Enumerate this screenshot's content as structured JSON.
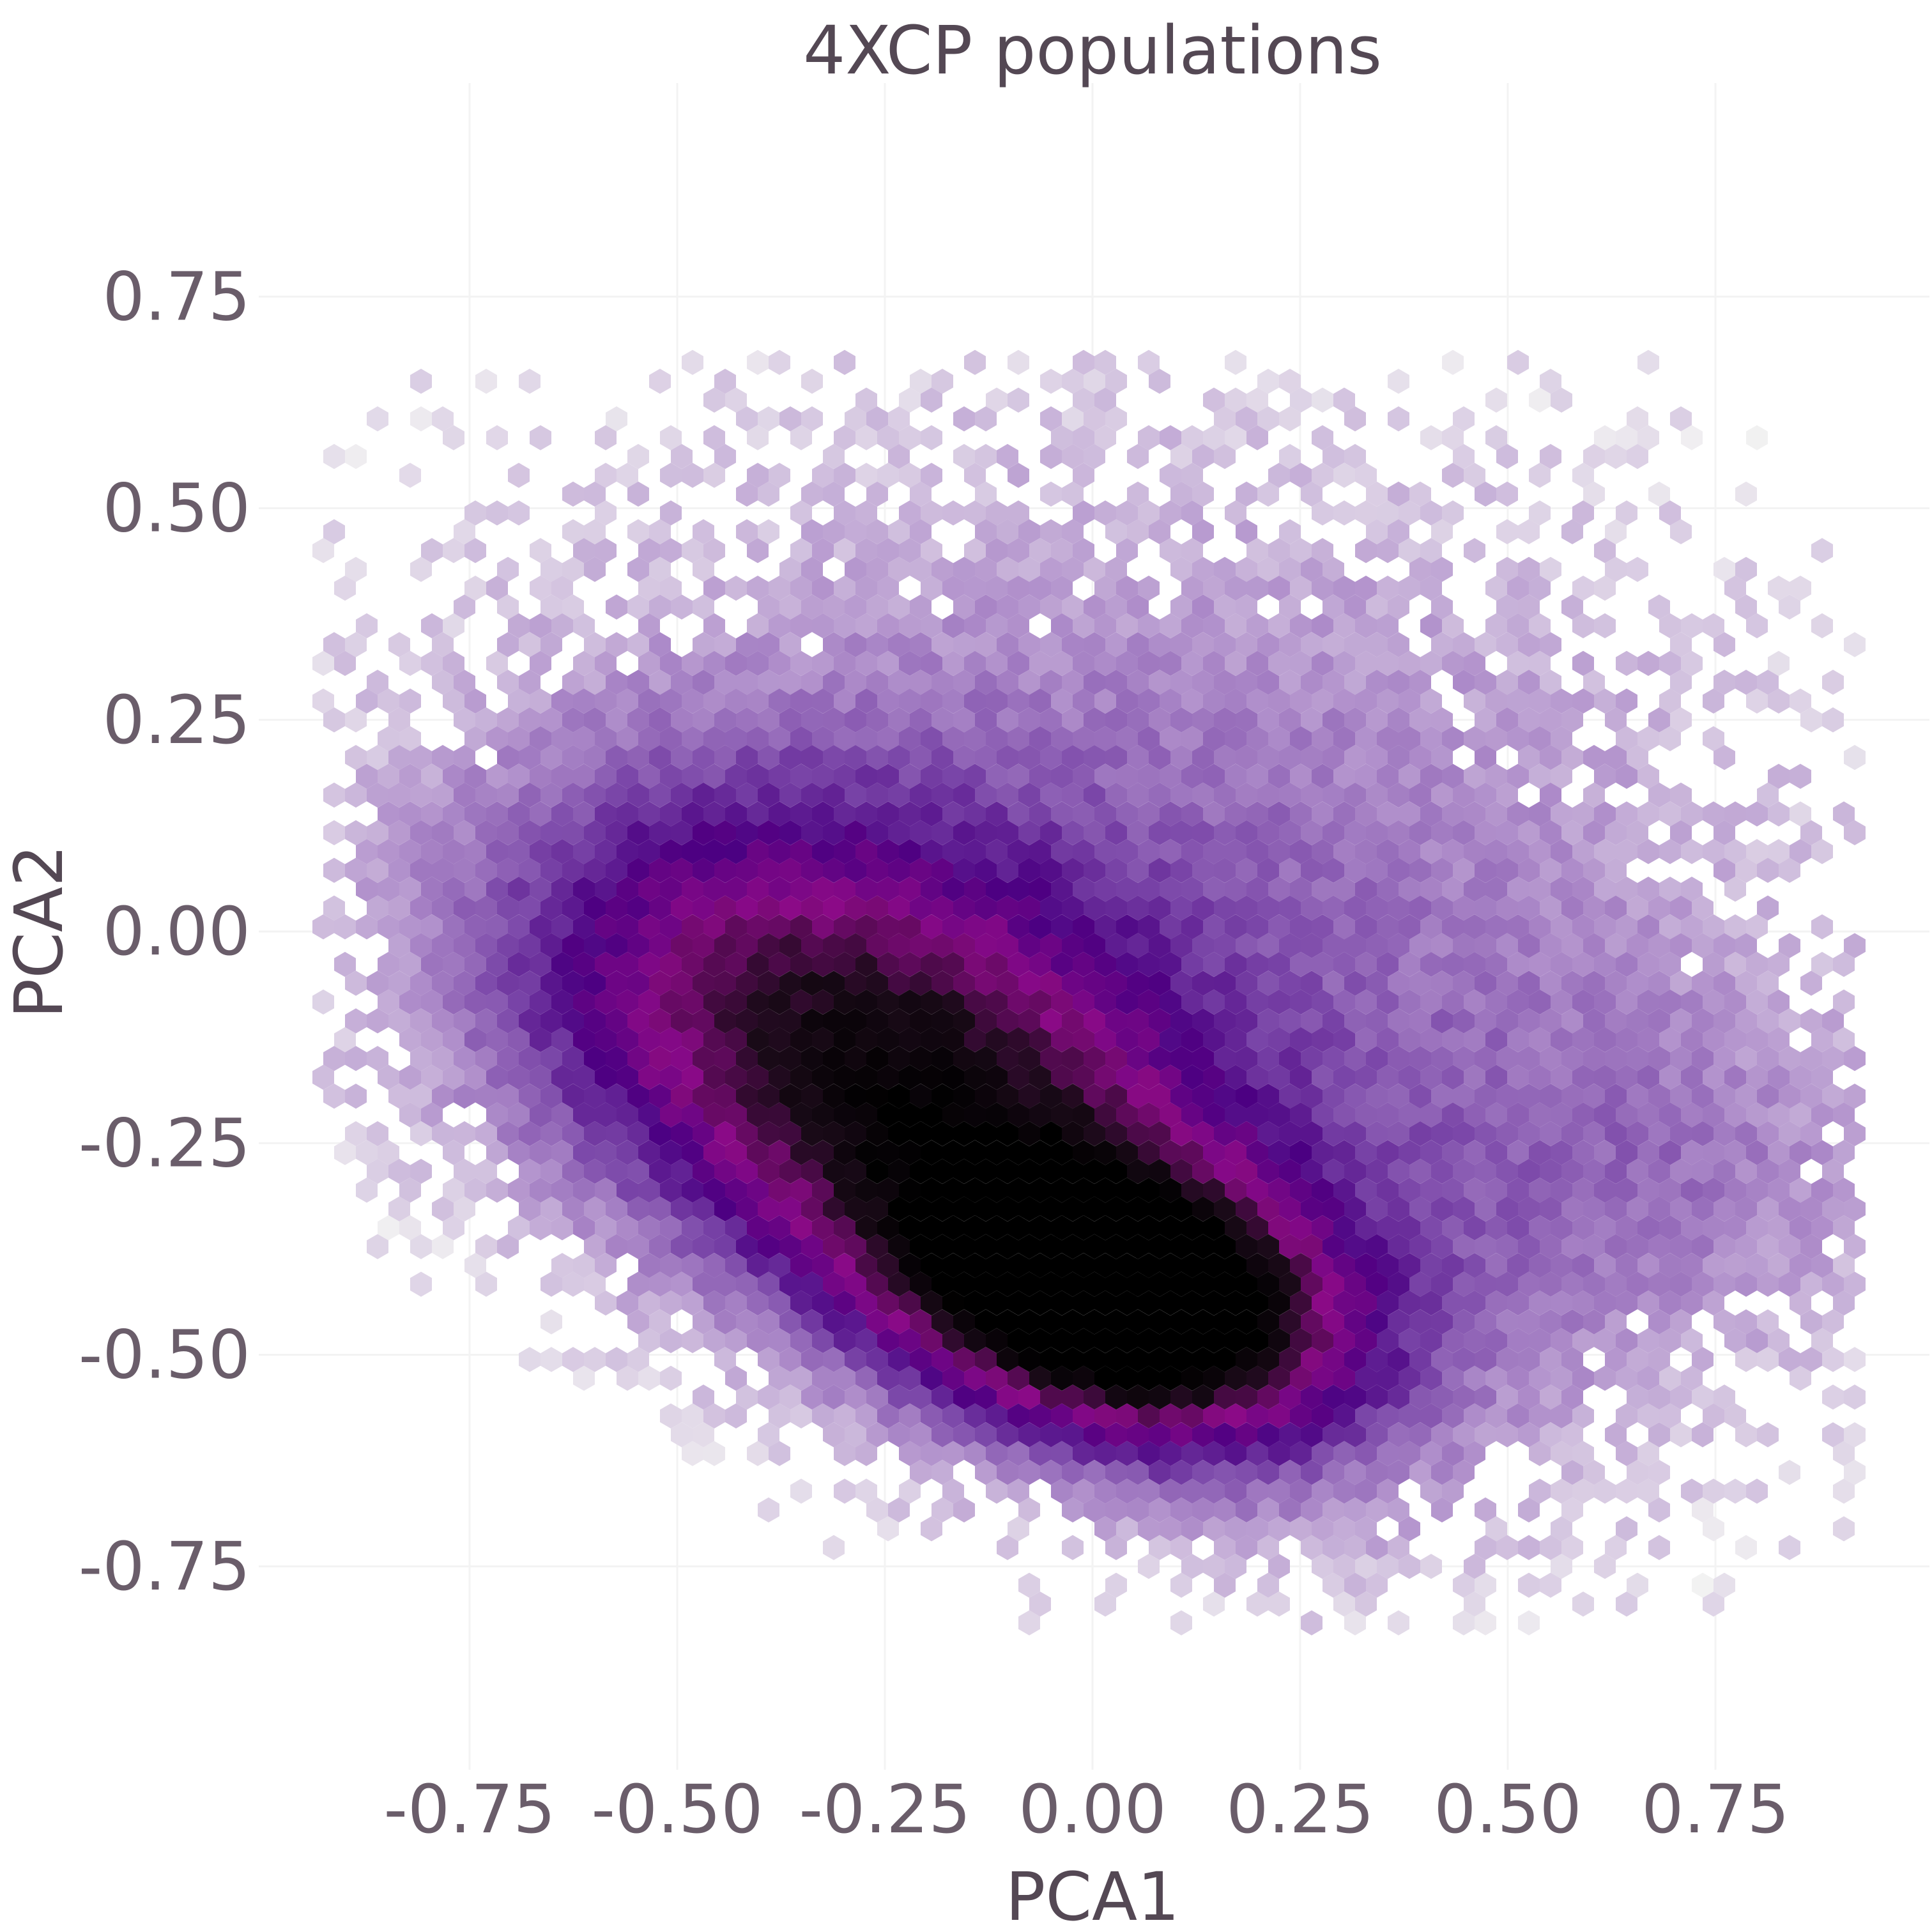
{
  "chart_data": {
    "type": "heatmap",
    "subtype": "hexbin",
    "title": "4XCP populations",
    "xlabel": "PCA1",
    "ylabel": "PCA2",
    "xlim": [
      -1.0,
      1.0
    ],
    "ylim": [
      -1.0,
      1.0
    ],
    "x_ticks": [
      -0.75,
      -0.5,
      -0.25,
      0.0,
      0.25,
      0.5,
      0.75
    ],
    "x_tick_labels": [
      "-0.75",
      "-0.50",
      "-0.25",
      "0.00",
      "0.25",
      "0.50",
      "0.75"
    ],
    "y_ticks": [
      -0.75,
      -0.5,
      -0.25,
      0.0,
      0.25,
      0.5,
      0.75
    ],
    "y_tick_labels": [
      "-0.75",
      "-0.50",
      "-0.25",
      "0.00",
      "0.25",
      "0.50",
      "0.75"
    ],
    "grid": true,
    "legend": "none",
    "colormap": [
      "#f2f2f2",
      "#d9cce3",
      "#b08fcb",
      "#7a46a8",
      "#4b0082",
      "#8b0a87",
      "#1a0a18",
      "#000000"
    ],
    "density_peaks": [
      {
        "x": -0.05,
        "y": -0.43,
        "level": 1.0
      },
      {
        "x": 0.12,
        "y": -0.45,
        "level": 0.97
      },
      {
        "x": -0.22,
        "y": -0.22,
        "level": 0.6
      },
      {
        "x": 0.7,
        "y": -0.32,
        "level": 0.35
      }
    ],
    "extent": {
      "x": [
        -0.9,
        0.9
      ],
      "y": [
        -0.8,
        0.65
      ]
    }
  }
}
